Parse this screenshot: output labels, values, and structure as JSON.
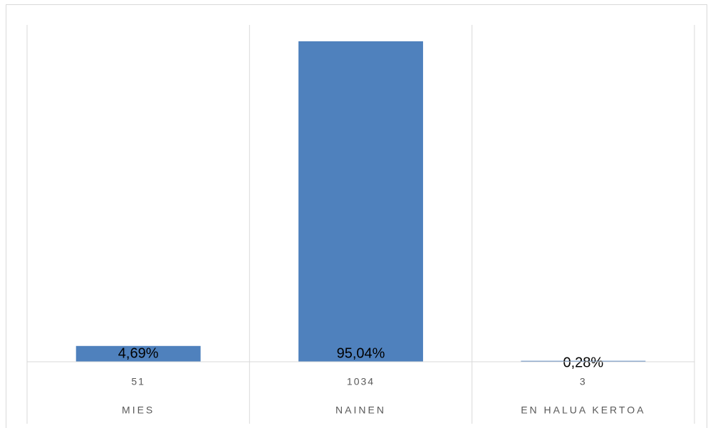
{
  "chart_data": {
    "type": "bar",
    "categories": [
      "MIES",
      "NAINEN",
      "EN HALUA KERTOA"
    ],
    "counts": [
      51,
      1034,
      3
    ],
    "values": [
      4.69,
      95.04,
      0.28
    ],
    "value_labels": [
      "4,69%",
      "95,04%",
      "0,28%"
    ],
    "color": "#4f81bd"
  }
}
